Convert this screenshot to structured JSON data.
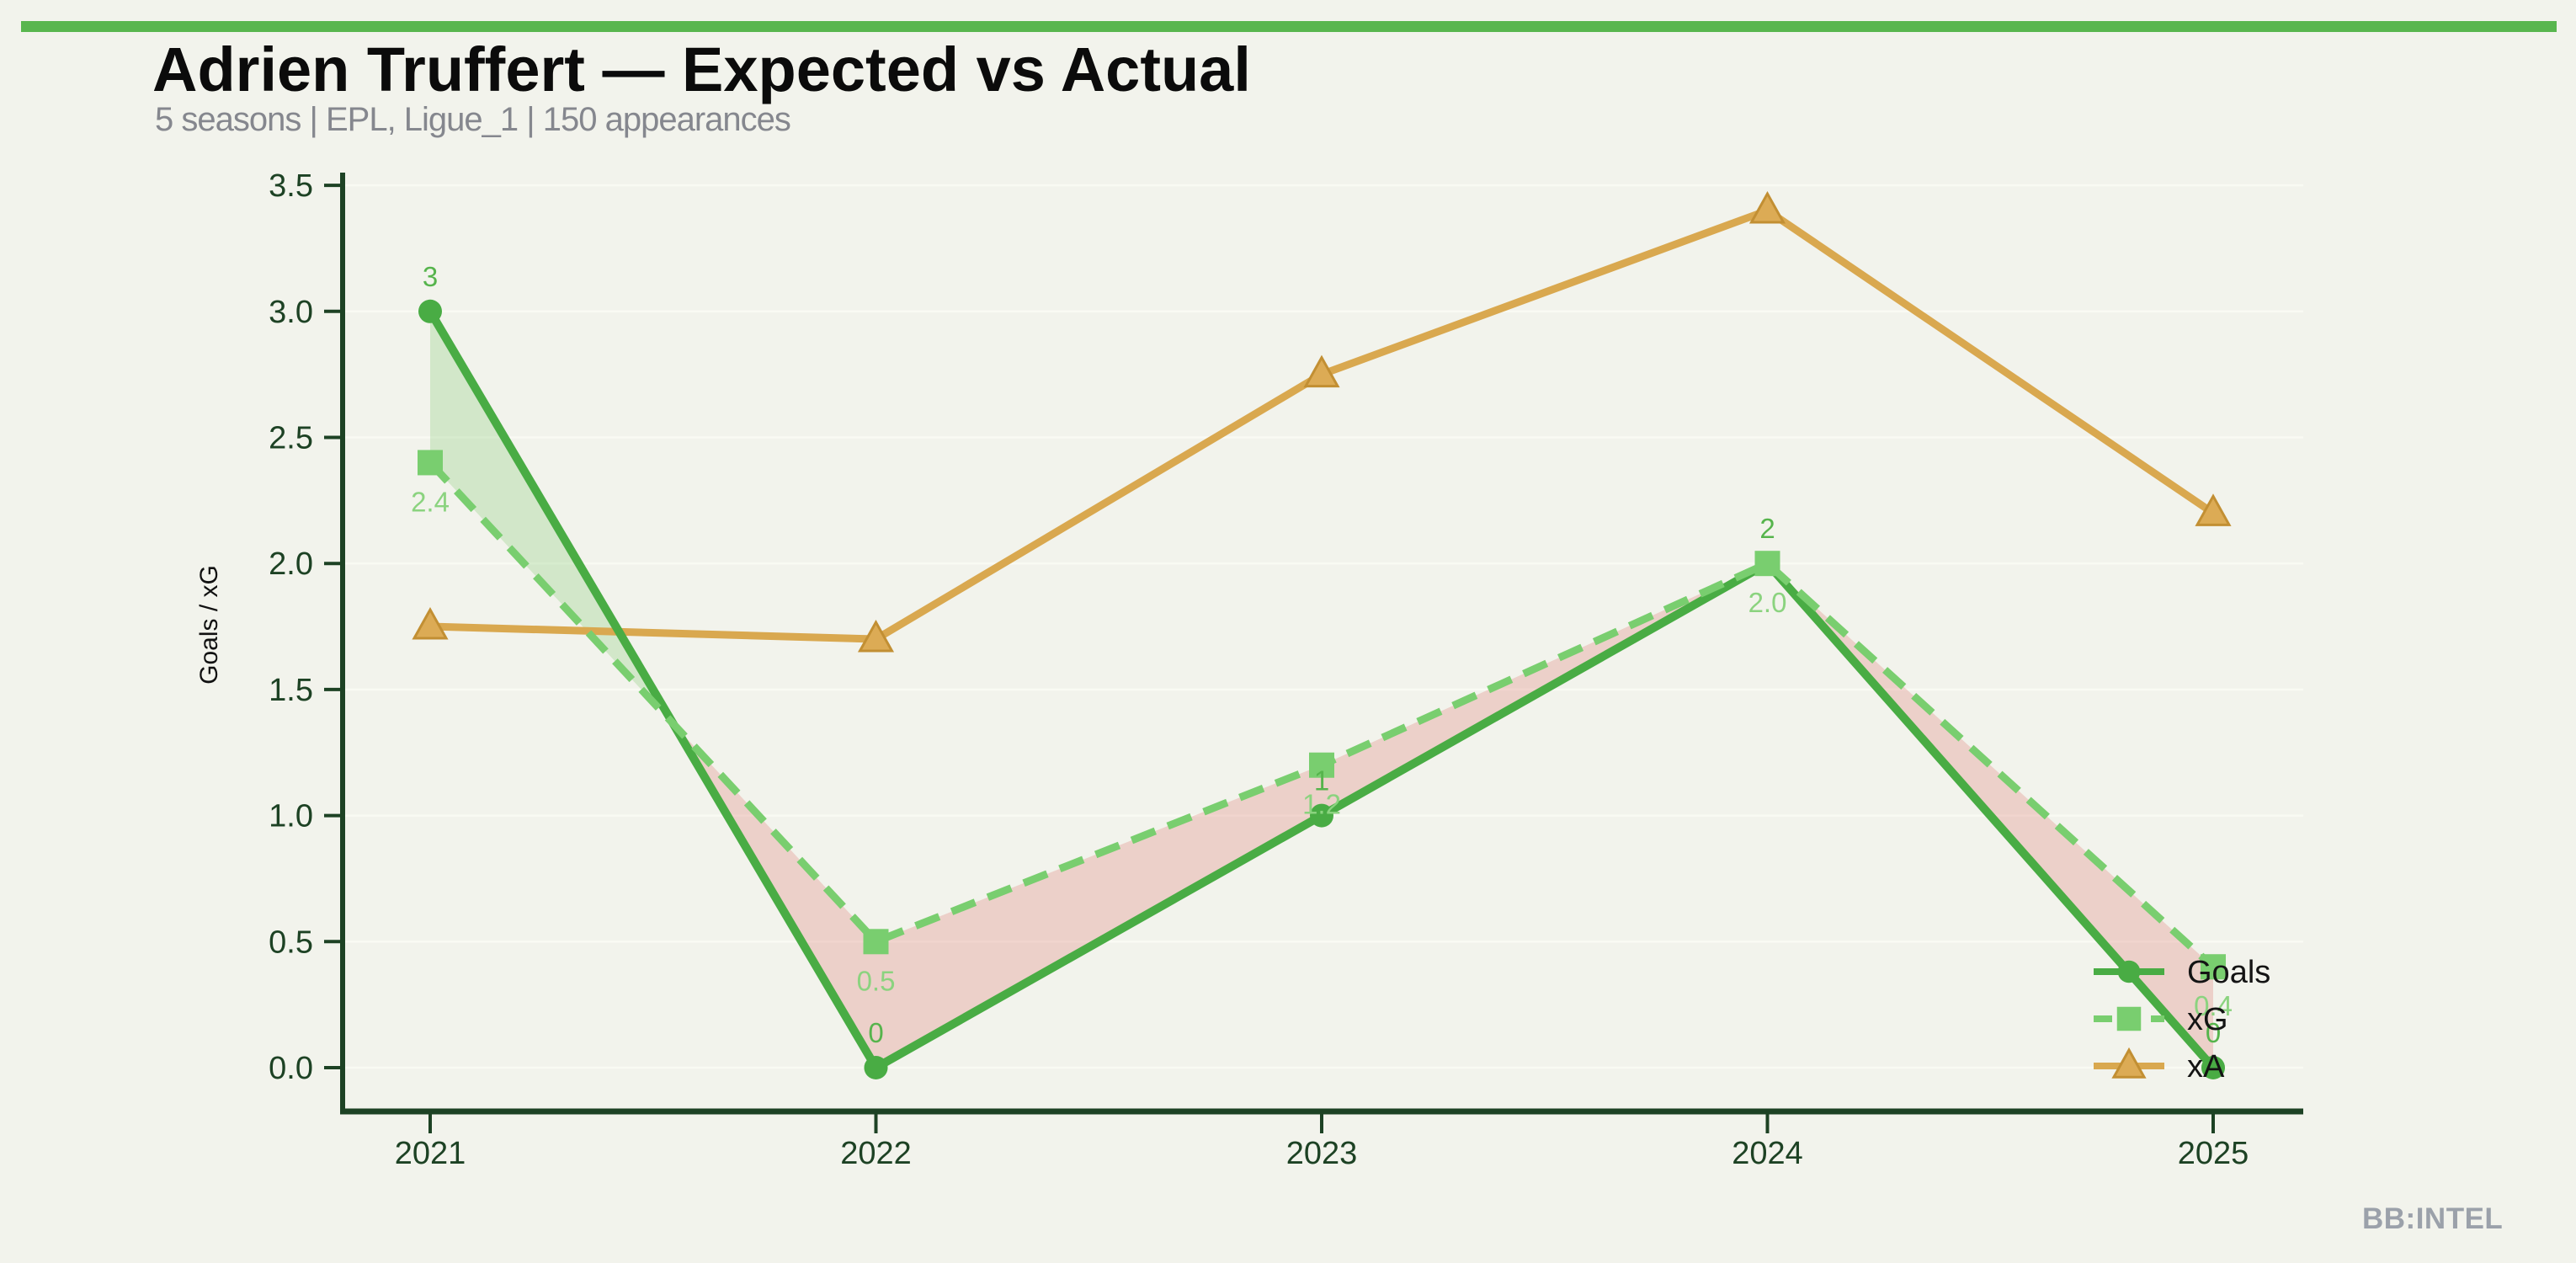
{
  "page": {
    "title": "Adrien Truffert — Expected vs Actual",
    "subtitle": "5 seasons | EPL, Ligue_1 | 150 appearances",
    "watermark": "BB:INTEL",
    "colors": {
      "background": "#f2f3ec",
      "top_bar": "#58b64e",
      "title": "#0b0b0b",
      "subtitle": "#85878e",
      "watermark": "#9ba1aa"
    }
  },
  "chart_data": {
    "type": "line",
    "title": "Adrien Truffert — Expected vs Actual",
    "xlabel": "",
    "ylabel": "Goals / xG",
    "categories": [
      "2021",
      "2022",
      "2023",
      "2024",
      "2025"
    ],
    "ylim": [
      0,
      3.5
    ],
    "ytick_step": 0.5,
    "yticks": [
      "0.0",
      "0.5",
      "1.0",
      "1.5",
      "2.0",
      "2.5",
      "3.0",
      "3.5"
    ],
    "grid": true,
    "legend_position": "lower-right",
    "series": [
      {
        "name": "Goals",
        "values": [
          3,
          0,
          1,
          2,
          0
        ],
        "point_labels": [
          "3",
          "0",
          "1",
          "2",
          "0"
        ],
        "color": "#49ac44",
        "label_color": "#56b44c",
        "marker": "circle",
        "line_style": "solid"
      },
      {
        "name": "xG",
        "values": [
          2.4,
          0.5,
          1.2,
          2.0,
          0.4
        ],
        "point_labels": [
          "2.4",
          "0.5",
          "1.2",
          "2.0",
          "0.4"
        ],
        "color": "#79ce6f",
        "label_color": "#8bd37f",
        "marker": "square",
        "line_style": "dashed"
      },
      {
        "name": "xA",
        "values": [
          1.75,
          1.7,
          2.75,
          3.4,
          2.2
        ],
        "point_labels": [],
        "color": "#d9a84f",
        "marker": "triangle",
        "marker_fill": "#dcab55",
        "marker_edge": "#c28f33",
        "line_style": "solid"
      }
    ],
    "colors": {
      "grid": "#f9faf3",
      "axis": "#1d4224",
      "tick_label": "#1d4224",
      "axis_label": "#111111",
      "legend_text": "#141414",
      "fill_over": "rgba(118,197,102,0.26)",
      "fill_under": "rgba(222,116,106,0.27)"
    }
  }
}
